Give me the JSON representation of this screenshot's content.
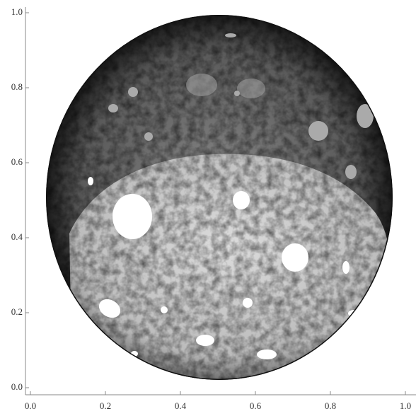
{
  "chart_data": {
    "type": "image",
    "xlim": [
      0,
      1
    ],
    "ylim": [
      0,
      1
    ],
    "xticks": [
      {
        "value": 0,
        "label": "0.0"
      },
      {
        "value": 0.2,
        "label": "0.2"
      },
      {
        "value": 0.4,
        "label": "0.4"
      },
      {
        "value": 0.6,
        "label": "0.6"
      },
      {
        "value": 0.8,
        "label": "0.8"
      },
      {
        "value": 1,
        "label": "1.0"
      }
    ],
    "yticks": [
      {
        "value": 0,
        "label": "0.0"
      },
      {
        "value": 0.2,
        "label": "0.2"
      },
      {
        "value": 0.4,
        "label": "0.4"
      },
      {
        "value": 0.6,
        "label": "0.6"
      },
      {
        "value": 0.8,
        "label": "0.8"
      },
      {
        "value": 1,
        "label": "1.0"
      }
    ]
  }
}
